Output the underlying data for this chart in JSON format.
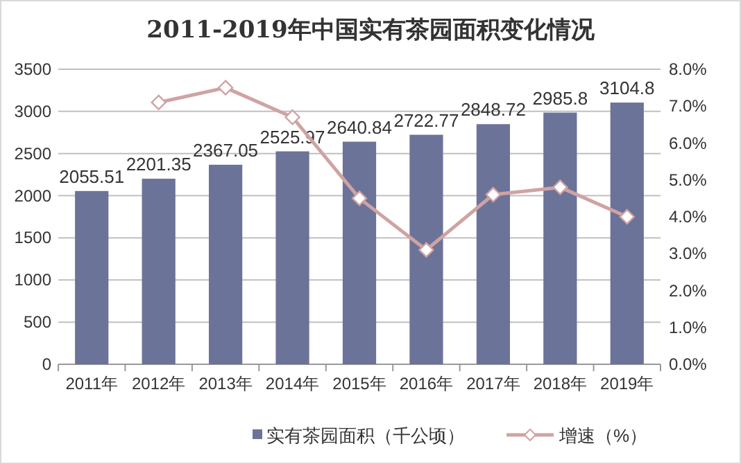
{
  "chart_data": {
    "type": "bar",
    "title": "2011-2019年中国实有茶园面积变化情况",
    "categories": [
      "2011年",
      "2012年",
      "2013年",
      "2014年",
      "2015年",
      "2016年",
      "2017年",
      "2018年",
      "2019年"
    ],
    "series": [
      {
        "name": "实有茶园面积（千公顷）",
        "color": "#6b7399",
        "values": [
          2055.51,
          2201.35,
          2367.05,
          2525.97,
          2640.84,
          2722.77,
          2848.72,
          2985.8,
          3104.8
        ],
        "data_labels": true
      },
      {
        "name": "增速（%）",
        "type": "line",
        "axis": "y2",
        "color": "#cfa3a3",
        "marker": "diamond",
        "values": [
          null,
          7.1,
          7.5,
          6.7,
          4.5,
          3.1,
          4.6,
          4.8,
          4.0
        ]
      }
    ],
    "ylim": [
      0,
      3500
    ],
    "yticks": [
      0,
      500,
      1000,
      1500,
      2000,
      2500,
      3000,
      3500
    ],
    "y2lim": [
      0,
      8
    ],
    "y2ticks": [
      {
        "value": 0,
        "label": "0.0%"
      },
      {
        "value": 1,
        "label": "1.0%"
      },
      {
        "value": 2,
        "label": "2.0%"
      },
      {
        "value": 3,
        "label": "3.0%"
      },
      {
        "value": 4,
        "label": "4.0%"
      },
      {
        "value": 5,
        "label": "5.0%"
      },
      {
        "value": 6,
        "label": "6.0%"
      },
      {
        "value": 7,
        "label": "7.0%"
      },
      {
        "value": 8,
        "label": "8.0%"
      }
    ],
    "grid": "y",
    "legend": "bottom"
  }
}
